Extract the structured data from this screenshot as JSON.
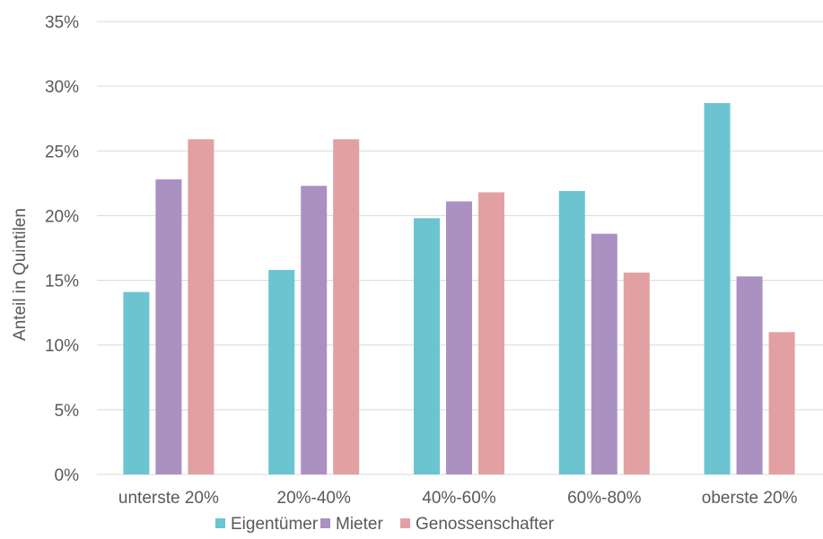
{
  "chart_data": {
    "type": "bar",
    "title": "",
    "xlabel": "",
    "ylabel": "Anteil in Quintilen",
    "ylim": [
      0,
      35
    ],
    "yticks": [
      0,
      5,
      10,
      15,
      20,
      25,
      30,
      35
    ],
    "ytick_labels": [
      "0%",
      "5%",
      "10%",
      "15%",
      "20%",
      "25%",
      "30%",
      "35%"
    ],
    "grid": true,
    "legend_position": "bottom",
    "categories": [
      "unterste 20%",
      "20%-40%",
      "40%-60%",
      "60%-80%",
      "oberste 20%"
    ],
    "series": [
      {
        "name": "Eigentümer",
        "color": "#6bc4d0",
        "values": [
          14.1,
          15.8,
          19.8,
          21.9,
          28.7
        ]
      },
      {
        "name": "Mieter",
        "color": "#ab90c2",
        "values": [
          22.8,
          22.3,
          21.1,
          18.6,
          15.3
        ]
      },
      {
        "name": "Genossenschafter",
        "color": "#e2a0a2",
        "values": [
          25.9,
          25.9,
          21.8,
          15.6,
          11.0
        ]
      }
    ]
  }
}
